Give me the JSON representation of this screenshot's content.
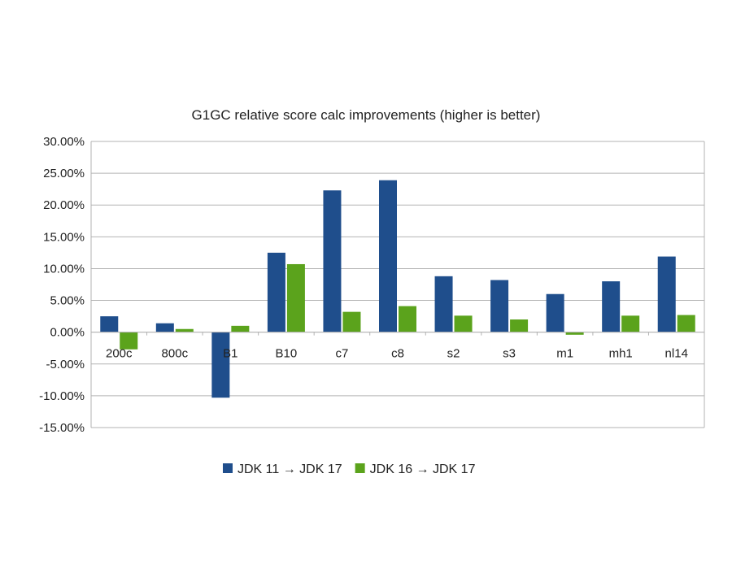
{
  "chart_data": {
    "type": "bar",
    "title": "G1GC relative score calc improvements (higher is better)",
    "categories": [
      "200c",
      "800c",
      "B1",
      "B10",
      "c7",
      "c8",
      "s2",
      "s3",
      "m1",
      "mh1",
      "nl14"
    ],
    "series": [
      {
        "name": "JDK 11 → JDK 17",
        "color": "#1f4e8c",
        "values": [
          2.5,
          1.4,
          -10.3,
          12.5,
          22.3,
          23.9,
          8.8,
          8.2,
          6.0,
          8.0,
          11.9
        ]
      },
      {
        "name": "JDK 16 → JDK 17",
        "color": "#5ba31c",
        "values": [
          -2.7,
          0.5,
          1.0,
          10.7,
          3.2,
          4.1,
          2.6,
          2.0,
          -0.4,
          2.6,
          2.7
        ]
      }
    ],
    "yticks": [
      "30.00%",
      "25.00%",
      "20.00%",
      "15.00%",
      "10.00%",
      "5.00%",
      "0.00%",
      "-5.00%",
      "-10.00%",
      "-15.00%"
    ],
    "ylim": [
      -15,
      30
    ],
    "ystep": 5,
    "grid": true,
    "legend_position": "bottom-center"
  }
}
